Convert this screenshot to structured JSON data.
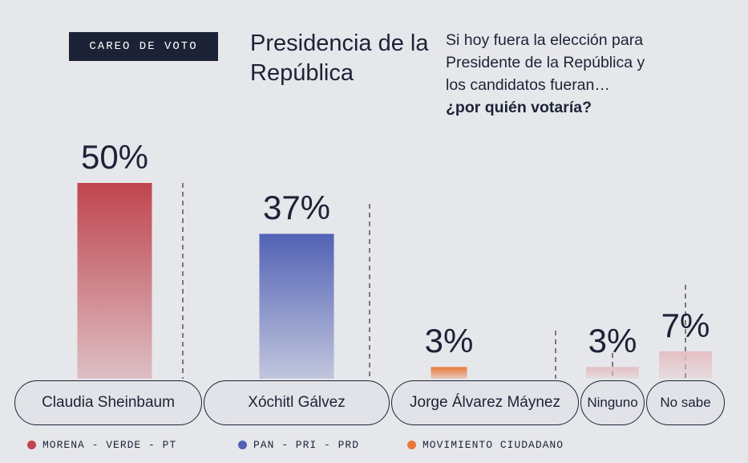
{
  "chart_data": {
    "type": "bar",
    "tag": "CAREO DE VOTO",
    "title": "Presidencia de la República",
    "subtitle": "Si hoy fuera la elección para Presidente de la República y los candidatos fueran…",
    "question": "¿por quién votaría?",
    "categories": [
      "Claudia Sheinbaum",
      "Xóchitl Gálvez",
      "Jorge Álvarez Máynez",
      "Ninguno",
      "No sabe"
    ],
    "values": [
      50,
      37,
      3,
      3,
      7
    ],
    "value_labels": [
      "50%",
      "37%",
      "3%",
      "3%",
      "7%"
    ],
    "colors": [
      "#c0454e",
      "#5262b5",
      "#e8773a",
      "#e3bfc2",
      "#e3bfc2"
    ],
    "legend": [
      {
        "name": "MORENA - VERDE - PT",
        "color": "#c0454e"
      },
      {
        "name": "PAN - PRI - PRD",
        "color": "#5262b5"
      },
      {
        "name": "MOVIMIENTO CIUDADANO",
        "color": "#e8773a"
      }
    ]
  }
}
